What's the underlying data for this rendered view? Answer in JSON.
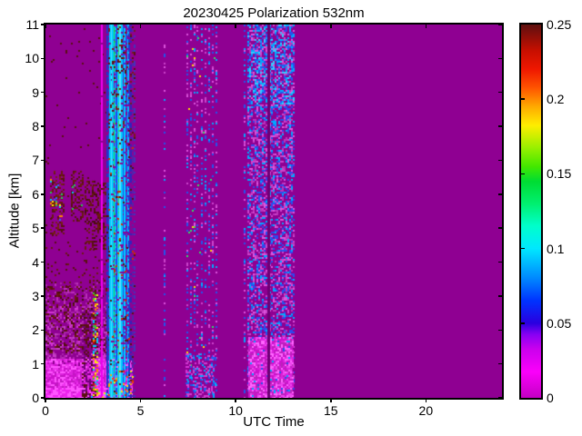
{
  "chart_data": {
    "type": "heatmap",
    "title": "20230425 Polarization 532nm",
    "xlabel": "UTC Time",
    "ylabel": "Altitude [km]",
    "xlim": [
      0,
      24
    ],
    "ylim": [
      0,
      11
    ],
    "grid": false,
    "xticks": {
      "values": [
        0,
        5,
        10,
        15,
        20
      ],
      "labels": [
        "0",
        "5",
        "10",
        "15",
        "20"
      ]
    },
    "yticks": {
      "values": [
        0,
        1,
        2,
        3,
        4,
        5,
        6,
        7,
        8,
        9,
        10,
        11
      ],
      "labels": [
        "0",
        "1",
        "2",
        "3",
        "4",
        "5",
        "6",
        "7",
        "8",
        "9",
        "10",
        "11"
      ]
    },
    "background_value_color": "#8f0092",
    "seed": 42,
    "colorbar": {
      "position": "right",
      "range": [
        0,
        0.25
      ],
      "ticks": {
        "values": [
          0,
          0.05,
          0.1,
          0.15,
          0.2,
          0.25
        ],
        "labels": [
          "0",
          "0.05",
          "0.1",
          "0.15",
          "0.2",
          "0.25"
        ]
      },
      "gradient_stops": [
        [
          0.0,
          "#c400c4"
        ],
        [
          0.07,
          "#fb00fb"
        ],
        [
          0.13,
          "#cc00ee"
        ],
        [
          0.17,
          "#8800f4"
        ],
        [
          0.2,
          "#2a00e0"
        ],
        [
          0.26,
          "#0033ff"
        ],
        [
          0.32,
          "#0088ff"
        ],
        [
          0.4,
          "#00e8ff"
        ],
        [
          0.46,
          "#00ffcc"
        ],
        [
          0.52,
          "#00f070"
        ],
        [
          0.58,
          "#00dd33"
        ],
        [
          0.62,
          "#44e800"
        ],
        [
          0.67,
          "#99f000"
        ],
        [
          0.73,
          "#ffee00"
        ],
        [
          0.78,
          "#ffaa00"
        ],
        [
          0.83,
          "#ff5500"
        ],
        [
          0.88,
          "#f01800"
        ],
        [
          0.93,
          "#c80f00"
        ],
        [
          1.0,
          "#5e1010"
        ]
      ]
    },
    "features": [
      {
        "type": "noise",
        "x0": 0,
        "x1": 3.4,
        "y0": 1.0,
        "y1": 2.7,
        "colors": [
          "#d633d6",
          "#c044c0",
          "#aa22aa",
          "#b92fb9"
        ],
        "density": 0.38,
        "size": 2
      },
      {
        "type": "noise",
        "x0": 0,
        "x1": 3.4,
        "y0": 2.2,
        "y1": 3.4,
        "colors": [
          "#b92fb9",
          "#aa22aa"
        ],
        "density": 0.18,
        "size": 2
      },
      {
        "type": "fill",
        "x0": 0,
        "x1": 4.55,
        "y0": 0,
        "y1": 0.95,
        "color": "#c019c0"
      },
      {
        "type": "noise",
        "x0": 0,
        "x1": 4.55,
        "y0": 0,
        "y1": 1.15,
        "colors": [
          "#ee33ee",
          "#ff55ff",
          "#dd22dd",
          "#cc11cc"
        ],
        "density": 0.85,
        "size": 2
      },
      {
        "type": "noise",
        "x0": 0,
        "x1": 4.55,
        "y0": 0,
        "y1": 0.3,
        "colors": [
          "#ff55ff",
          "#ee22ee"
        ],
        "density": 0.9,
        "size": 2
      },
      {
        "type": "noise",
        "x0": 0,
        "x1": 3.4,
        "y0": 1.3,
        "y1": 3.3,
        "colors": [
          "#5a1010",
          "#6b1a10",
          "#4a0d0d"
        ],
        "density": 0.22,
        "size": 2
      },
      {
        "type": "noise",
        "x0": 0,
        "x1": 3.5,
        "y0": 3.3,
        "y1": 4.6,
        "colors": [
          "#5a1010",
          "#6b1a10"
        ],
        "density": 0.06,
        "size": 2
      },
      {
        "type": "noise",
        "x0": 0,
        "x1": 3.4,
        "y0": 4.6,
        "y1": 11,
        "colors": [
          "#5a1010"
        ],
        "density": 0.012,
        "size": 2
      },
      {
        "type": "noise",
        "x0": 0.25,
        "x1": 0.95,
        "y0": 4.8,
        "y1": 6.7,
        "colors": [
          "#5a1010",
          "#6b1a10",
          "#7a2212"
        ],
        "density": 0.4,
        "size": 2
      },
      {
        "type": "noise",
        "x0": 1.35,
        "x1": 2.0,
        "y0": 5.2,
        "y1": 6.7,
        "colors": [
          "#5a1010",
          "#6b1a10"
        ],
        "density": 0.38,
        "size": 2
      },
      {
        "type": "noise",
        "x0": 2.05,
        "x1": 3.35,
        "y0": 4.4,
        "y1": 6.4,
        "colors": [
          "#5a1010",
          "#6b1a10",
          "#4a0d0d"
        ],
        "density": 0.45,
        "size": 2
      },
      {
        "type": "noise",
        "x0": 0.25,
        "x1": 0.85,
        "y0": 5.2,
        "y1": 6.5,
        "colors": [
          "#22cc55",
          "#00ccff",
          "#ffee00",
          "#3366ff",
          "#ff8800"
        ],
        "density": 0.1,
        "size": 2
      },
      {
        "type": "noise",
        "x0": 1.4,
        "x1": 1.9,
        "y0": 5.5,
        "y1": 6.3,
        "colors": [
          "#22cc55",
          "#00ccff"
        ],
        "density": 0.06,
        "size": 2
      },
      {
        "type": "noise",
        "x0": 1.9,
        "x1": 2.6,
        "y0": 0,
        "y1": 2.6,
        "colors": [
          "#7a0080",
          "#6e0074",
          "#5a1010"
        ],
        "density": 0.5,
        "size": 2
      },
      {
        "type": "noise",
        "x0": 2.5,
        "x1": 2.72,
        "y0": 0,
        "y1": 3.1,
        "colors": [
          "#cc1100",
          "#ffee00",
          "#33cc33",
          "#00ccff",
          "#ff8800",
          "#5a1010"
        ],
        "density": 0.5,
        "size": 2
      },
      {
        "type": "noise",
        "x0": 2.4,
        "x1": 3.3,
        "y0": 0,
        "y1": 0.15,
        "colors": [
          "#00ccff",
          "#ffee00",
          "#ff8800"
        ],
        "density": 0.25,
        "size": 2
      },
      {
        "type": "vlines",
        "y0": 0,
        "y1": 11,
        "width": 2,
        "lines": [
          {
            "x": 2.96,
            "color": "#ee00ee",
            "fill": 0.97
          },
          {
            "x": 3.25,
            "color": "#2233cc",
            "fill": 0.8
          },
          {
            "x": 3.33,
            "color": "#3a3acd",
            "fill": 0.5
          },
          {
            "x": 3.4,
            "color": "#00ccff",
            "fill": 0.95
          },
          {
            "x": 3.48,
            "color": "#44ddff",
            "fill": 0.95
          },
          {
            "x": 3.55,
            "color": "#00ccff",
            "fill": 0.9
          },
          {
            "x": 3.61,
            "color": "#22cc55",
            "fill": 0.55
          },
          {
            "x": 3.67,
            "color": "#00ccff",
            "fill": 0.9
          },
          {
            "x": 3.74,
            "color": "#2244ee",
            "fill": 0.7
          },
          {
            "x": 3.81,
            "color": "#00ccff",
            "fill": 0.9
          },
          {
            "x": 3.87,
            "color": "#33dd66",
            "fill": 0.5
          },
          {
            "x": 3.94,
            "color": "#55e0ff",
            "fill": 0.95
          },
          {
            "x": 4.01,
            "color": "#00ccff",
            "fill": 0.85
          },
          {
            "x": 4.09,
            "color": "#2244ee",
            "fill": 0.7
          },
          {
            "x": 4.17,
            "color": "#00ccff",
            "fill": 0.85
          },
          {
            "x": 4.25,
            "color": "#3344dd",
            "fill": 0.6
          },
          {
            "x": 4.33,
            "color": "#00bbff",
            "fill": 0.8
          },
          {
            "x": 4.41,
            "color": "#2233cc",
            "fill": 0.5
          },
          {
            "x": 4.49,
            "color": "#3322bb",
            "fill": 0.45
          },
          {
            "x": 4.58,
            "color": "#5522aa",
            "fill": 0.4
          },
          {
            "x": 4.68,
            "color": "#4433bb",
            "fill": 0.35
          }
        ]
      },
      {
        "type": "noise",
        "x0": 3.3,
        "x1": 4.7,
        "y0": 7.5,
        "y1": 11,
        "colors": [
          "#5a1010",
          "#7a1a1a"
        ],
        "density": 0.13,
        "size": 2
      },
      {
        "type": "noise",
        "x0": 3.3,
        "x1": 4.7,
        "y0": 0,
        "y1": 7.5,
        "colors": [
          "#5a1010",
          "#cc3300"
        ],
        "density": 0.05,
        "size": 2
      },
      {
        "type": "noise",
        "x0": 3.3,
        "x1": 4.6,
        "y0": 0,
        "y1": 0.8,
        "colors": [
          "#ff4400",
          "#ffaa00",
          "#ffee00"
        ],
        "density": 0.12,
        "size": 2
      },
      {
        "type": "dotcols",
        "y0": 0,
        "y1": 11,
        "width": 2,
        "colors": [
          "#2255ee",
          "#00aaff",
          "#cc44cc",
          "#dd55dd",
          "#2255ee"
        ],
        "cols": [
          {
            "x": 6.25,
            "density": 0.3
          },
          {
            "x": 7.45,
            "density": 0.28
          },
          {
            "x": 7.63,
            "density": 0.24
          },
          {
            "x": 7.82,
            "density": 0.3
          },
          {
            "x": 8.0,
            "density": 0.26
          },
          {
            "x": 8.2,
            "density": 0.3
          },
          {
            "x": 8.4,
            "density": 0.24
          },
          {
            "x": 8.6,
            "density": 0.3
          },
          {
            "x": 8.78,
            "density": 0.26
          },
          {
            "x": 8.97,
            "density": 0.28
          },
          {
            "x": 10.45,
            "density": 0.3
          }
        ]
      },
      {
        "type": "noise",
        "x0": 7.4,
        "x1": 9.0,
        "y0": 0,
        "y1": 11,
        "colors": [
          "#33dd66",
          "#ffdd00"
        ],
        "density": 0.008,
        "size": 2
      },
      {
        "type": "noise",
        "x0": 7.35,
        "x1": 9.0,
        "y0": 0,
        "y1": 1.3,
        "colors": [
          "#d633d6",
          "#2255ee",
          "#cc44cc",
          "#00aaff"
        ],
        "density": 0.4,
        "size": 2
      },
      {
        "type": "noise",
        "x0": 10.6,
        "x1": 13.05,
        "y0": 0,
        "y1": 11,
        "colors": [
          "#cc44cc",
          "#dd55dd",
          "#2255ee",
          "#00aaff",
          "#bb33bb",
          "#3344ee"
        ],
        "density": 0.5,
        "size": 2
      },
      {
        "type": "noise",
        "x0": 10.6,
        "x1": 13.05,
        "y0": 8.5,
        "y1": 11,
        "colors": [
          "#2255ee",
          "#00aaff",
          "#33ccff"
        ],
        "density": 0.25,
        "size": 2
      },
      {
        "type": "fill",
        "x0": 10.65,
        "x1": 13.0,
        "y0": 0,
        "y1": 1.75,
        "color": "#bb22bb"
      },
      {
        "type": "noise",
        "x0": 10.65,
        "x1": 13.0,
        "y0": 0,
        "y1": 1.8,
        "colors": [
          "#ee44ee",
          "#ff66ff",
          "#dd22dd",
          "#cc11cc"
        ],
        "density": 0.75,
        "size": 2
      },
      {
        "type": "noise",
        "x0": 10.65,
        "x1": 13.0,
        "y0": 0,
        "y1": 1.8,
        "colors": [
          "#2255ee",
          "#00aaff"
        ],
        "density": 0.06,
        "size": 2
      },
      {
        "type": "vline",
        "x": 11.72,
        "y0": 0,
        "y1": 11,
        "color": "#6e0076",
        "width": 3,
        "fill": 1
      }
    ]
  }
}
